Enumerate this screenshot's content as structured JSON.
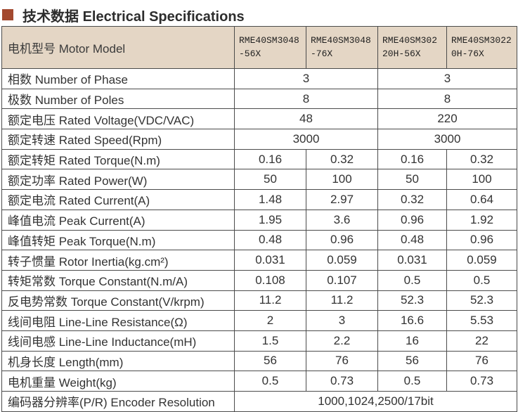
{
  "title": {
    "zh": "技术数据",
    "en": "Electrical Specifications"
  },
  "colors": {
    "accent": "#a3492f",
    "header_bg": "#e4d6c5",
    "border": "#4b4b4b"
  },
  "table": {
    "header_label": "电机型号 Motor Model",
    "models": [
      "RME40SM3048-56X",
      "RME40SM3048-76X",
      "RME40SM30220H-56X",
      "RME40SM30220H-76X"
    ],
    "rows": [
      {
        "label": "相数 Number of Phase",
        "span": 2,
        "values": [
          "3",
          "3"
        ]
      },
      {
        "label": "极数 Number of Poles",
        "span": 2,
        "values": [
          "8",
          "8"
        ]
      },
      {
        "label": "额定电压 Rated Voltage(VDC/VAC)",
        "span": 2,
        "values": [
          "48",
          "220"
        ]
      },
      {
        "label": "额定转速 Rated Speed(Rpm)",
        "span": 2,
        "values": [
          "3000",
          "3000"
        ]
      },
      {
        "label": "额定转矩 Rated Torque(N.m)",
        "span": 1,
        "values": [
          "0.16",
          "0.32",
          "0.16",
          "0.32"
        ]
      },
      {
        "label": "额定功率 Rated Power(W)",
        "span": 1,
        "values": [
          "50",
          "100",
          "50",
          "100"
        ]
      },
      {
        "label": "额定电流 Rated Current(A)",
        "span": 1,
        "values": [
          "1.48",
          "2.97",
          "0.32",
          "0.64"
        ]
      },
      {
        "label": "峰值电流 Peak Current(A)",
        "span": 1,
        "values": [
          "1.95",
          "3.6",
          "0.96",
          "1.92"
        ]
      },
      {
        "label": "峰值转矩 Peak Torque(N.m)",
        "span": 1,
        "values": [
          "0.48",
          "0.96",
          "0.48",
          "0.96"
        ]
      },
      {
        "label": "转子惯量 Rotor Inertia(kg.cm²)",
        "span": 1,
        "values": [
          "0.031",
          "0.059",
          "0.031",
          "0.059"
        ]
      },
      {
        "label": "转矩常数 Torque Constant(N.m/A)",
        "span": 1,
        "values": [
          "0.108",
          "0.107",
          "0.5",
          "0.5"
        ]
      },
      {
        "label": "反电势常数 Torque Constant(V/krpm)",
        "span": 1,
        "values": [
          "11.2",
          "11.2",
          "52.3",
          "52.3"
        ]
      },
      {
        "label": "线间电阻 Line-Line Resistance(Ω)",
        "span": 1,
        "values": [
          "2",
          "3",
          "16.6",
          "5.53"
        ]
      },
      {
        "label": "线间电感 Line-Line Inductance(mH)",
        "span": 1,
        "values": [
          "1.5",
          "2.2",
          "16",
          "22"
        ]
      },
      {
        "label": "机身长度 Length(mm)",
        "span": 1,
        "values": [
          "56",
          "76",
          "56",
          "76"
        ]
      },
      {
        "label": "电机重量 Weight(kg)",
        "span": 1,
        "values": [
          "0.5",
          "0.73",
          "0.5",
          "0.73"
        ]
      },
      {
        "label": "编码器分辨率(P/R) Encoder Resolution",
        "span": 4,
        "values": [
          "1000,1024,2500/17bit"
        ]
      }
    ]
  }
}
